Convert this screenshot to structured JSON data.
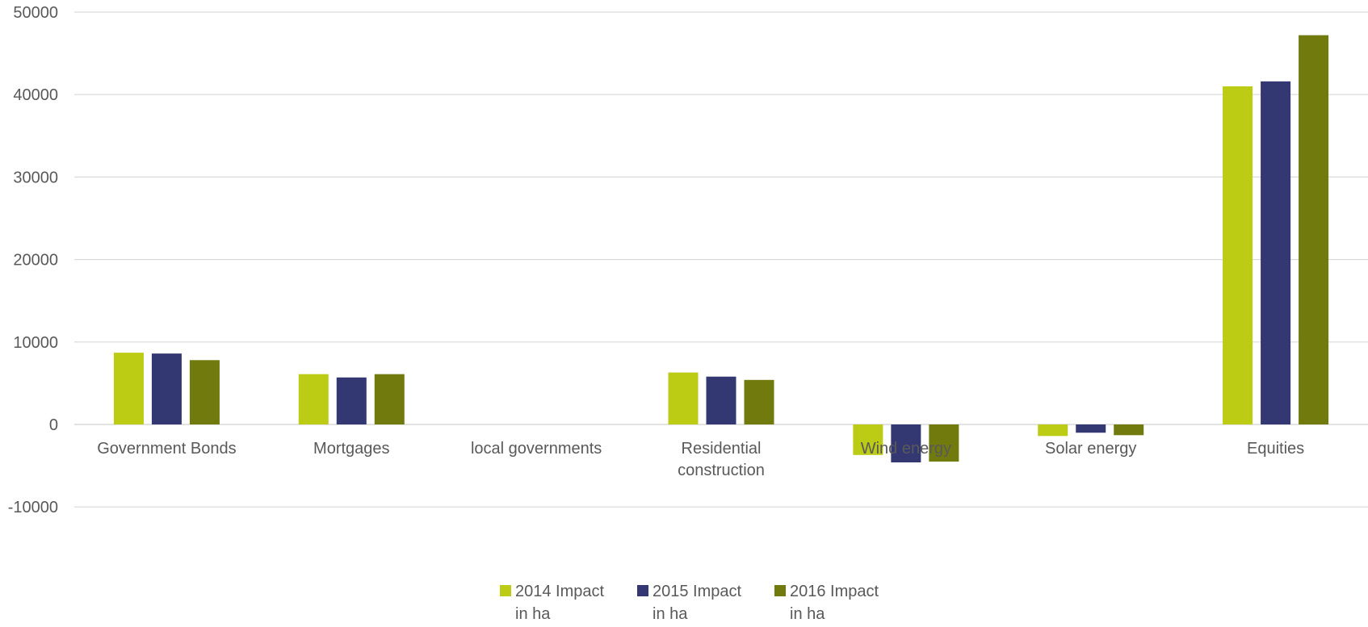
{
  "chart_data": {
    "type": "bar",
    "title": "",
    "xlabel": "",
    "ylabel": "",
    "ylim": [
      -10000,
      50000
    ],
    "yticks": [
      -10000,
      0,
      10000,
      20000,
      30000,
      40000,
      50000
    ],
    "ytick_labels": [
      "-10000",
      "0",
      "10000",
      "20000",
      "30000",
      "40000",
      "50000"
    ],
    "grid": true,
    "legend_position": "bottom",
    "categories": [
      [
        "Government Bonds"
      ],
      [
        "Mortgages"
      ],
      [
        "local governments"
      ],
      [
        "Residential",
        "construction"
      ],
      [
        "Wind energy"
      ],
      [
        "Solar energy"
      ],
      [
        "Equities"
      ]
    ],
    "series": [
      {
        "name_lines": [
          "2014 Impact",
          "in ha"
        ],
        "color": "#bccb14",
        "values": [
          8700,
          6100,
          0,
          6300,
          -3700,
          -1400,
          41000
        ]
      },
      {
        "name_lines": [
          "2015 Impact",
          "in ha"
        ],
        "color": "#343872",
        "values": [
          8600,
          5700,
          0,
          5800,
          -4600,
          -1000,
          41600
        ]
      },
      {
        "name_lines": [
          "2016 Impact",
          "in ha"
        ],
        "color": "#707a0d",
        "values": [
          7800,
          6100,
          0,
          5400,
          -4500,
          -1300,
          47200
        ]
      }
    ],
    "gridline_color": "#d9d9d9"
  }
}
